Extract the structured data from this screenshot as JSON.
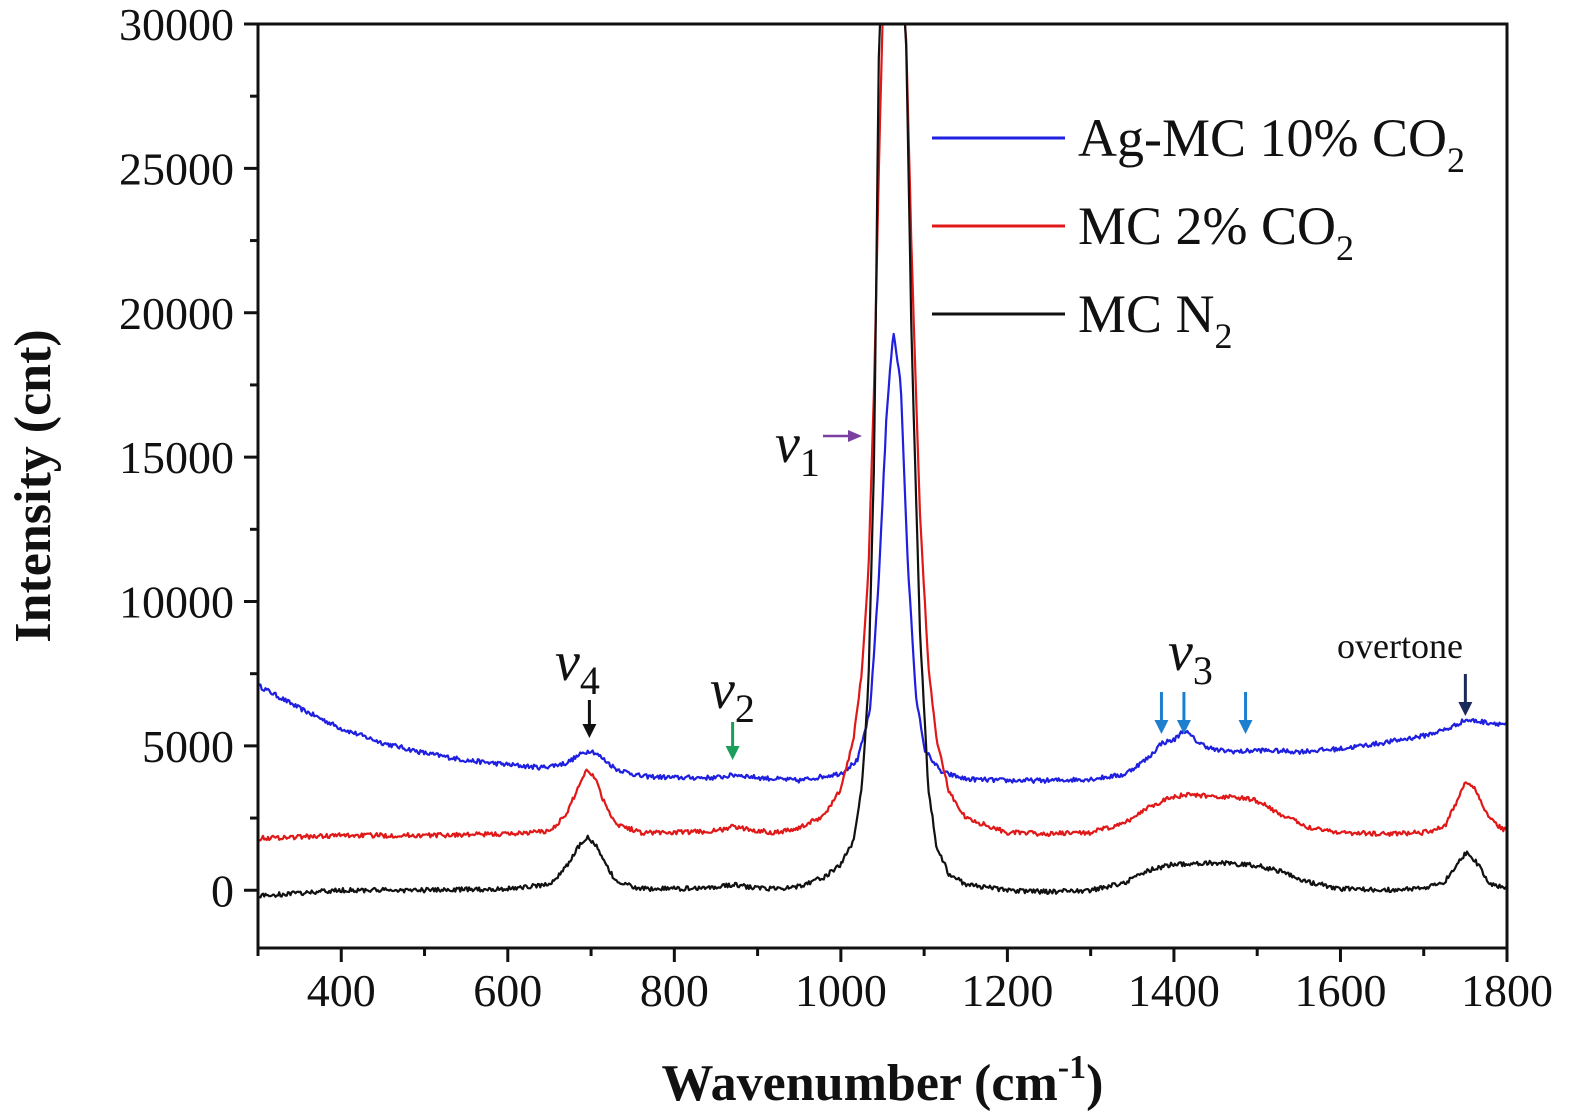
{
  "chart_data": {
    "type": "line",
    "title": "",
    "xlabel": "Wavenumber (cm",
    "xlabel_sup": "-1",
    "xlabel_close": ")",
    "ylabel": "Intensity (cnt)",
    "xlim": [
      300,
      1800
    ],
    "ylim": [
      -2000,
      30000
    ],
    "xticks": [
      400,
      600,
      800,
      1000,
      1200,
      1400,
      1600,
      1800
    ],
    "yticks": [
      0,
      5000,
      10000,
      15000,
      20000,
      25000,
      30000
    ],
    "grid": false,
    "legend_position": "top-right",
    "series": [
      {
        "name": "Ag-MC 10% CO",
        "name_sub": "2",
        "color": "#1f1fe0",
        "x": [
          300,
          350,
          400,
          450,
          500,
          550,
          600,
          640,
          670,
          690,
          700,
          710,
          730,
          760,
          800,
          850,
          875,
          900,
          950,
          1000,
          1020,
          1035,
          1045,
          1055,
          1063,
          1072,
          1080,
          1090,
          1100,
          1120,
          1150,
          1200,
          1250,
          1300,
          1340,
          1370,
          1385,
          1400,
          1412,
          1430,
          1450,
          1480,
          1500,
          1550,
          1600,
          1650,
          1700,
          1730,
          1750,
          1765,
          1780,
          1800
        ],
        "values": [
          7100,
          6300,
          5600,
          5100,
          4750,
          4500,
          4350,
          4250,
          4400,
          4750,
          4850,
          4650,
          4200,
          3950,
          3900,
          3900,
          4000,
          3900,
          3800,
          4050,
          4500,
          6200,
          10500,
          16500,
          19400,
          17500,
          11500,
          6800,
          4900,
          4100,
          3850,
          3800,
          3800,
          3850,
          4000,
          4600,
          5100,
          5200,
          5550,
          5100,
          4850,
          4800,
          4850,
          4800,
          4900,
          5100,
          5350,
          5600,
          5900,
          5850,
          5800,
          5750
        ]
      },
      {
        "name": "MC 2% CO",
        "name_sub": "2",
        "color": "#e01818",
        "x": [
          300,
          350,
          400,
          500,
          600,
          650,
          670,
          685,
          695,
          705,
          715,
          730,
          760,
          800,
          850,
          870,
          890,
          920,
          950,
          980,
          1000,
          1015,
          1025,
          1033,
          1040,
          1046,
          1050,
          1055,
          1060,
          1066,
          1072,
          1078,
          1085,
          1095,
          1105,
          1115,
          1130,
          1150,
          1200,
          1250,
          1300,
          1340,
          1370,
          1400,
          1420,
          1450,
          1480,
          1500,
          1530,
          1560,
          1600,
          1650,
          1700,
          1725,
          1740,
          1750,
          1760,
          1775,
          1790,
          1800
        ],
        "values": [
          1800,
          1850,
          1900,
          1900,
          1950,
          2050,
          2600,
          3600,
          4200,
          3900,
          3100,
          2300,
          2000,
          2000,
          2050,
          2200,
          2100,
          2000,
          2150,
          2600,
          3500,
          5200,
          7500,
          11000,
          17500,
          25500,
          30000,
          30000,
          30000,
          30000,
          30000,
          30000,
          22000,
          13000,
          7800,
          5200,
          3400,
          2500,
          2000,
          1950,
          2000,
          2300,
          2900,
          3250,
          3300,
          3250,
          3200,
          3100,
          2600,
          2200,
          2000,
          1950,
          2000,
          2200,
          3100,
          3750,
          3600,
          2700,
          2200,
          2050
        ]
      },
      {
        "name": "MC N",
        "name_sub": "2",
        "color": "#111111",
        "x": [
          300,
          350,
          400,
          500,
          600,
          650,
          670,
          685,
          695,
          705,
          715,
          730,
          760,
          800,
          850,
          870,
          890,
          920,
          950,
          980,
          1000,
          1015,
          1025,
          1033,
          1040,
          1046,
          1050,
          1055,
          1060,
          1066,
          1072,
          1078,
          1085,
          1095,
          1105,
          1115,
          1130,
          1150,
          1200,
          1250,
          1300,
          1340,
          1370,
          1400,
          1450,
          1480,
          1500,
          1530,
          1560,
          1600,
          1650,
          1700,
          1725,
          1740,
          1752,
          1765,
          1780,
          1800
        ],
        "values": [
          -200,
          -100,
          0,
          0,
          50,
          200,
          800,
          1500,
          1850,
          1600,
          1000,
          300,
          50,
          50,
          100,
          200,
          100,
          50,
          150,
          450,
          900,
          1700,
          3500,
          7000,
          15000,
          30000,
          30000,
          30000,
          30000,
          30000,
          30000,
          30000,
          19000,
          9000,
          3500,
          1500,
          550,
          200,
          0,
          -50,
          0,
          250,
          700,
          900,
          950,
          900,
          850,
          650,
          300,
          50,
          0,
          50,
          300,
          900,
          1350,
          900,
          200,
          50
        ]
      }
    ],
    "annotations": [
      {
        "label": "v",
        "sub": "4",
        "x": 698,
        "arrow_color": "#111111"
      },
      {
        "label": "v",
        "sub": "2",
        "x": 870,
        "arrow_color": "#1a9e5a"
      },
      {
        "label": "v",
        "sub": "1",
        "x": 1000,
        "arrow_color": "#7b3fa0"
      },
      {
        "label": "v",
        "sub": "3",
        "x": 1412,
        "arrow_color": "#1f7fcf",
        "arrows_x": [
          1385,
          1412,
          1486
        ]
      },
      {
        "label": "overtone",
        "x": 1750,
        "arrow_color": "#1a2a5a"
      }
    ]
  }
}
